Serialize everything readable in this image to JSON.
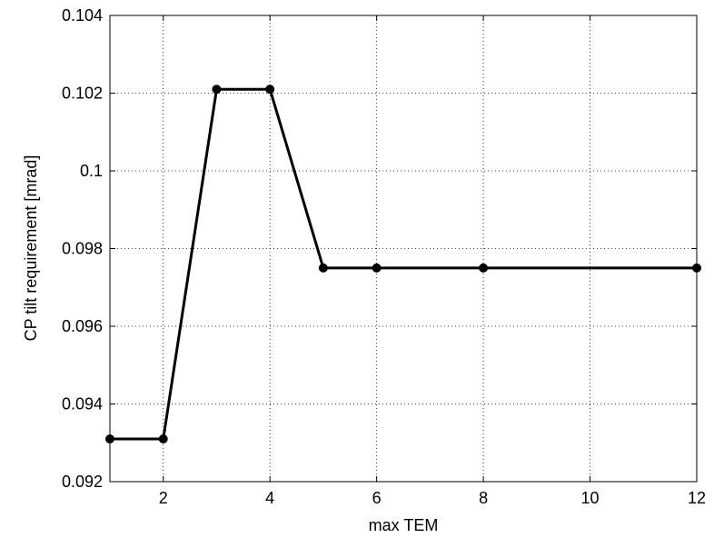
{
  "chart_data": {
    "type": "line",
    "xlabel": "max TEM",
    "ylabel": "CP tilt requirement [mrad]",
    "x_tick_labels": [
      "2",
      "4",
      "6",
      "8",
      "10",
      "12"
    ],
    "y_tick_labels": [
      "0.092",
      "0.094",
      "0.096",
      "0.098",
      "0.1",
      "0.102",
      "0.104"
    ],
    "ylim": [
      0.092,
      0.104
    ],
    "grid": true,
    "series": [
      {
        "x_labels": [
          "1",
          "2",
          "3",
          "4",
          "5",
          "6",
          "8",
          "12"
        ],
        "values": [
          0.0931,
          0.0931,
          0.1021,
          0.1021,
          0.0975,
          0.0975,
          0.0975,
          0.0975
        ],
        "color": "#000000",
        "marker": "circle"
      }
    ]
  }
}
